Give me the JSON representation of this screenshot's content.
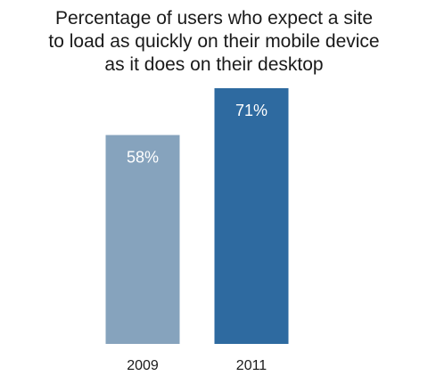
{
  "chart_data": {
    "type": "bar",
    "title_lines": [
      "Percentage of users who expect a site",
      "to load as quickly on their mobile device",
      "as it does on their desktop"
    ],
    "categories": [
      "2009",
      "2011"
    ],
    "values": [
      58,
      71
    ],
    "data_labels": [
      "58%",
      "71%"
    ],
    "colors": [
      "#86a3bd",
      "#2e6aa0"
    ],
    "xlabel": "",
    "ylabel": "",
    "ylim": [
      0,
      71
    ],
    "grid": false,
    "legend": "none"
  }
}
